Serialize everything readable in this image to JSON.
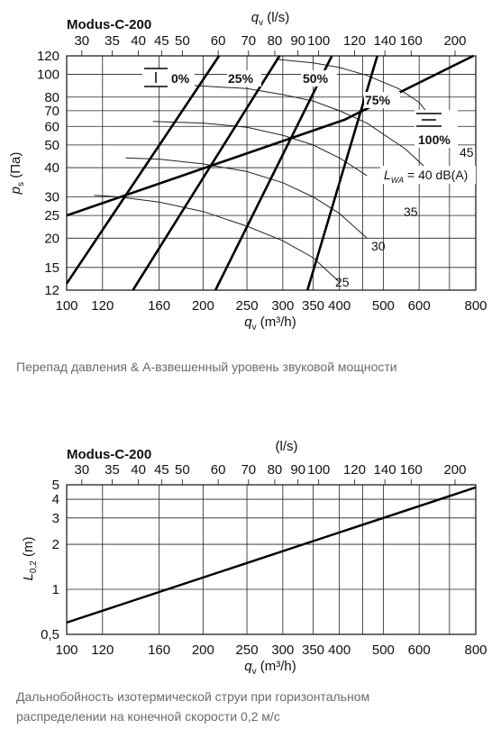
{
  "chart_data": [
    {
      "type": "line",
      "title": "Modus-C-200",
      "top_axis_label": "q_v (l/s)",
      "top_ticks": [
        30,
        35,
        40,
        45,
        50,
        60,
        70,
        80,
        90,
        100,
        120,
        140,
        160,
        200
      ],
      "xlabel": "q_v (m³/h)",
      "x_ticks": [
        100,
        120,
        160,
        200,
        250,
        300,
        350,
        400,
        500,
        600,
        800
      ],
      "xlim": [
        100,
        800
      ],
      "x_scale": "log",
      "ylabel": "p_s (Па)",
      "y_ticks": [
        12,
        15,
        20,
        25,
        30,
        40,
        50,
        60,
        70,
        80,
        100,
        120
      ],
      "ylim": [
        12,
        120
      ],
      "y_scale": "log",
      "grid": true,
      "damper_lines": [
        {
          "name": "0%",
          "points": [
            [
              100,
              12.8
            ],
            [
              217,
              120
            ]
          ]
        },
        {
          "name": "25%",
          "points": [
            [
              140,
              12
            ],
            [
              295,
              120
            ]
          ]
        },
        {
          "name": "50%",
          "points": [
            [
              213,
              12
            ],
            [
              385,
              120
            ]
          ]
        },
        {
          "name": "75%",
          "points": [
            [
              340,
              12
            ],
            [
              485,
              120
            ]
          ]
        },
        {
          "name": "100%",
          "points": [
            [
              100,
              25
            ],
            [
              410,
              64
            ],
            [
              790,
              120
            ]
          ]
        }
      ],
      "sound_curves": [
        {
          "name": "25",
          "points": [
            [
              115,
              30.5
            ],
            [
              130,
              30
            ],
            [
              160,
              28.5
            ],
            [
              200,
              26
            ],
            [
              250,
              22.5
            ],
            [
              300,
              19.5
            ],
            [
              350,
              16.5
            ],
            [
              400,
              13
            ]
          ]
        },
        {
          "name": "30",
          "points": [
            [
              135,
              44
            ],
            [
              160,
              43.5
            ],
            [
              200,
              41.5
            ],
            [
              250,
              38.5
            ],
            [
              300,
              34.5
            ],
            [
              350,
              30
            ],
            [
              400,
              25.5
            ],
            [
              460,
              20
            ]
          ]
        },
        {
          "name": "35",
          "points": [
            [
              155,
              63
            ],
            [
              200,
              62
            ],
            [
              250,
              59.5
            ],
            [
              300,
              55
            ],
            [
              350,
              50
            ],
            [
              400,
              44
            ],
            [
              460,
              37
            ]
          ]
        },
        {
          "name": "40",
          "points": [
            [
              185,
              90
            ],
            [
              250,
              87
            ],
            [
              300,
              82
            ],
            [
              350,
              77
            ],
            [
              400,
              70
            ],
            [
              460,
              62
            ],
            [
              560,
              48
            ],
            [
              620,
              40
            ]
          ]
        },
        {
          "name": "45",
          "points": [
            [
              290,
              116
            ],
            [
              350,
              112
            ],
            [
              400,
              107
            ],
            [
              460,
              99
            ],
            [
              540,
              87
            ],
            [
              600,
              76
            ],
            [
              660,
              60
            ],
            [
              690,
              50
            ]
          ]
        }
      ],
      "annotations": {
        "sound_label": "L_WA = 40 dB(A)",
        "curve_labels": [
          "25",
          "30",
          "35",
          "45"
        ],
        "damper_labels": [
          "0%",
          "25%",
          "50%",
          "75%",
          "100%"
        ]
      }
    },
    {
      "type": "line",
      "title": "Modus-C-200",
      "top_axis_label": "(l/s)",
      "top_ticks": [
        30,
        35,
        40,
        45,
        50,
        60,
        70,
        80,
        90,
        100,
        120,
        140,
        160,
        200
      ],
      "xlabel": "q_v (m³/h)",
      "x_ticks": [
        100,
        120,
        160,
        200,
        250,
        300,
        350,
        400,
        500,
        600,
        800
      ],
      "xlim": [
        100,
        800
      ],
      "x_scale": "log",
      "ylabel": "L_0,2 (m)",
      "y_ticks": [
        "0,5",
        "1",
        "2",
        "3",
        "4",
        "5"
      ],
      "y_tick_values": [
        0.5,
        1,
        2,
        3,
        4,
        5
      ],
      "ylim": [
        0.5,
        5
      ],
      "y_scale": "log",
      "grid": true,
      "series": [
        {
          "points": [
            [
              100,
              0.6
            ],
            [
              160,
              0.96
            ],
            [
              250,
              1.5
            ],
            [
              350,
              2.1
            ],
            [
              500,
              3.0
            ],
            [
              800,
              4.8
            ]
          ]
        }
      ]
    }
  ],
  "captions": {
    "chart1": "Перепад давления & А-взвешенный уровень звуковой мощности",
    "chart2_line1": "Дальнобойность изотермической струи при горизонтальном",
    "chart2_line2": "распределении на конечной скорости 0,2 м/с"
  }
}
